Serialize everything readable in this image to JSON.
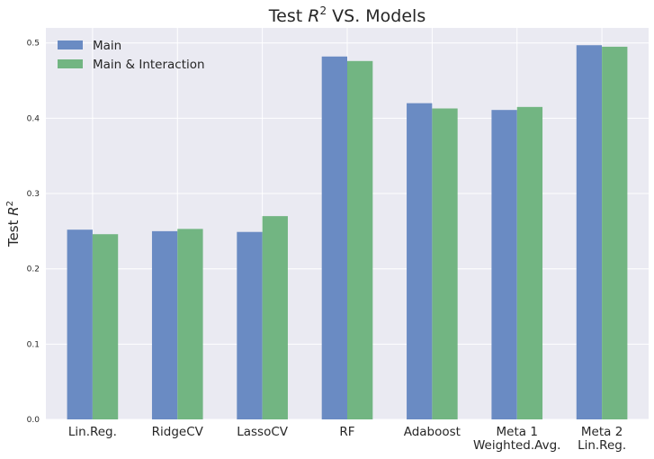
{
  "chart_data": {
    "type": "bar",
    "title_prefix": "Test ",
    "title_var": "R",
    "title_exp": "2",
    "title_suffix": " VS. Models",
    "ylabel_prefix": "Test ",
    "ylabel_var": "R",
    "ylabel_exp": "2",
    "xlabel": "",
    "ylim": [
      0,
      0.52
    ],
    "yticks": [
      "0.0",
      "0.1",
      "0.2",
      "0.3",
      "0.4",
      "0.5"
    ],
    "grid": true,
    "legend_position": "top-left",
    "categories": [
      [
        "Lin.Reg."
      ],
      [
        "RidgeCV"
      ],
      [
        "LassoCV"
      ],
      [
        "RF"
      ],
      [
        "Adaboost"
      ],
      [
        "Meta 1",
        "Weighted.Avg."
      ],
      [
        "Meta 2",
        "Lin.Reg."
      ]
    ],
    "series": [
      {
        "name": "Main",
        "color": "#6a8bc3",
        "values": [
          0.252,
          0.25,
          0.249,
          0.482,
          0.42,
          0.411,
          0.497
        ]
      },
      {
        "name": "Main & Interaction",
        "color": "#72b582",
        "values": [
          0.246,
          0.253,
          0.27,
          0.476,
          0.413,
          0.415,
          0.495
        ]
      }
    ],
    "background_color": "#eaeaf2",
    "grid_color": "#ffffff"
  }
}
